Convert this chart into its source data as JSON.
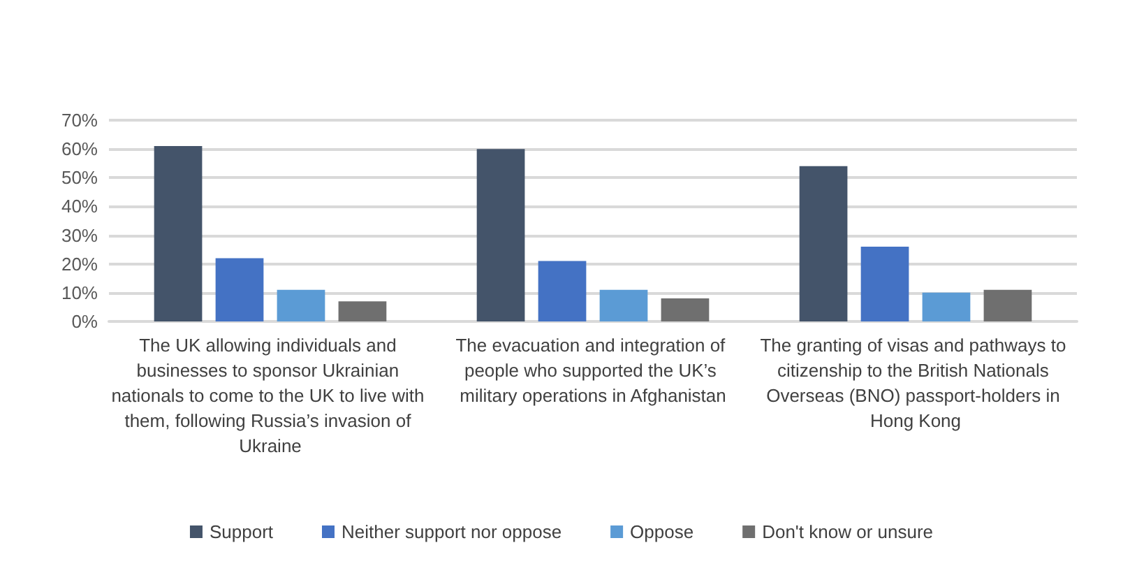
{
  "chart_data": {
    "type": "bar",
    "categories": [
      "The UK allowing individuals and businesses to sponsor Ukrainian nationals to come to the UK to live with them, following Russia’s invasion of Ukraine",
      "The evacuation and integration of people who supported the UK’s military operations in Afghanistan",
      "The granting of visas and pathways to citizenship to the British Nationals Overseas (BNO) passport-holders in Hong Kong"
    ],
    "series": [
      {
        "name": "Support",
        "color": "#44546a",
        "values": [
          61,
          60,
          54
        ]
      },
      {
        "name": "Neither support nor oppose",
        "color": "#4472c4",
        "values": [
          22,
          21,
          26
        ]
      },
      {
        "name": "Oppose",
        "color": "#5b9bd5",
        "values": [
          11,
          11,
          10
        ]
      },
      {
        "name": "Don't know or unsure",
        "color": "#6f6f6f",
        "values": [
          7,
          8,
          11
        ]
      }
    ],
    "ylim": [
      0,
      70
    ],
    "yticks": [
      {
        "value": 0,
        "label": "0%"
      },
      {
        "value": 10,
        "label": "10%"
      },
      {
        "value": 20,
        "label": "20%"
      },
      {
        "value": 30,
        "label": "30%"
      },
      {
        "value": 40,
        "label": "40%"
      },
      {
        "value": 50,
        "label": "50%"
      },
      {
        "value": 60,
        "label": "60%"
      },
      {
        "value": 70,
        "label": "70%"
      }
    ],
    "grid": "y",
    "legend": "bottom"
  }
}
